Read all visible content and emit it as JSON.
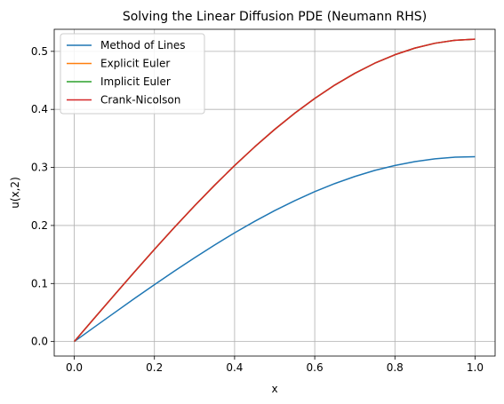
{
  "chart_data": {
    "type": "line",
    "title": "Solving the Linear Diffusion PDE (Neumann RHS)",
    "xlabel": "x",
    "ylabel": "u(x,2)",
    "xlim": [
      -0.05,
      1.05
    ],
    "ylim": [
      -0.025,
      0.538
    ],
    "xticks": [
      0.0,
      0.2,
      0.4,
      0.6,
      0.8,
      1.0
    ],
    "xtick_labels": [
      "0.0",
      "0.2",
      "0.4",
      "0.6",
      "0.8",
      "1.0"
    ],
    "yticks": [
      0.0,
      0.1,
      0.2,
      0.3,
      0.4,
      0.5
    ],
    "ytick_labels": [
      "0.0",
      "0.1",
      "0.2",
      "0.3",
      "0.4",
      "0.5"
    ],
    "grid": true,
    "legend_position": "top-left",
    "x": [
      0.0,
      0.05,
      0.1,
      0.15,
      0.2,
      0.25,
      0.3,
      0.35,
      0.4,
      0.45,
      0.5,
      0.55,
      0.6,
      0.65,
      0.7,
      0.75,
      0.8,
      0.85,
      0.9,
      0.95,
      1.0
    ],
    "series": [
      {
        "name": "Method of Lines",
        "color": "#1f77b4",
        "values": [
          0.0,
          0.0248,
          0.0495,
          0.074,
          0.098,
          0.1215,
          0.1443,
          0.1663,
          0.1873,
          0.2071,
          0.2256,
          0.2427,
          0.2583,
          0.2722,
          0.2844,
          0.2949,
          0.3034,
          0.3101,
          0.3148,
          0.3176,
          0.3185
        ]
      },
      {
        "name": "Explicit Euler",
        "color": "#ff7f0e",
        "values": [
          0.0,
          0.0402,
          0.0802,
          0.1198,
          0.1588,
          0.1968,
          0.2337,
          0.2692,
          0.3032,
          0.3353,
          0.3655,
          0.3934,
          0.4189,
          0.4419,
          0.4622,
          0.4797,
          0.4942,
          0.5057,
          0.514,
          0.5191,
          0.521
        ]
      },
      {
        "name": "Implicit Euler",
        "color": "#2ca02c",
        "values": [
          0.0,
          0.0402,
          0.0802,
          0.1198,
          0.1588,
          0.1968,
          0.2337,
          0.2692,
          0.3032,
          0.3353,
          0.3655,
          0.3934,
          0.4189,
          0.4419,
          0.4622,
          0.4797,
          0.4942,
          0.5057,
          0.514,
          0.5191,
          0.521
        ]
      },
      {
        "name": "Crank-Nicolson",
        "color": "#d62728",
        "values": [
          0.0,
          0.0402,
          0.0802,
          0.1198,
          0.1588,
          0.1968,
          0.2337,
          0.2692,
          0.3032,
          0.3353,
          0.3655,
          0.3934,
          0.4189,
          0.4419,
          0.4622,
          0.4797,
          0.4942,
          0.5057,
          0.514,
          0.5191,
          0.521
        ]
      }
    ]
  }
}
